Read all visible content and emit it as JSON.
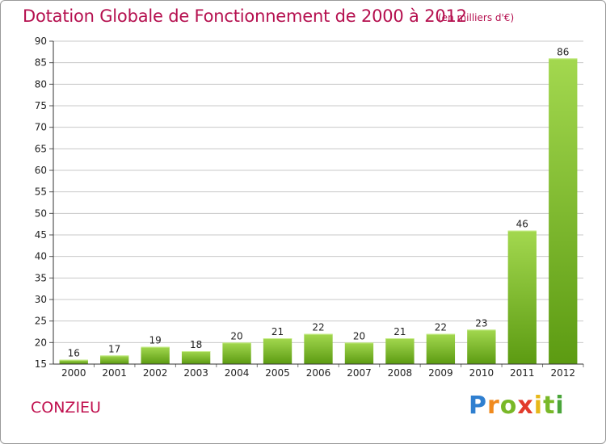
{
  "header": {
    "title": "Dotation Globale de Fonctionnement de 2000 à 2012",
    "subtitle": "(en milliers d'€)"
  },
  "footer": {
    "commune": "CONZIEU",
    "logo": "Proxiti"
  },
  "colors": {
    "title": "#b5104f",
    "bar_light": "#9fd64a",
    "bar_dark": "#5f9f14",
    "grid": "#c8c8c8"
  },
  "chart_data": {
    "type": "bar",
    "title": "Dotation Globale de Fonctionnement de 2000 à 2012",
    "subtitle": "(en milliers d'€)",
    "xlabel": "",
    "ylabel": "",
    "categories": [
      "2000",
      "2001",
      "2002",
      "2003",
      "2004",
      "2005",
      "2006",
      "2007",
      "2008",
      "2009",
      "2010",
      "2011",
      "2012"
    ],
    "values": [
      16,
      17,
      19,
      18,
      20,
      21,
      22,
      20,
      21,
      22,
      23,
      46,
      86
    ],
    "ylim": [
      15,
      90
    ],
    "yticks": [
      15,
      20,
      25,
      30,
      35,
      40,
      45,
      50,
      55,
      60,
      65,
      70,
      75,
      80,
      85,
      90
    ],
    "grid": true,
    "legend": "none"
  }
}
